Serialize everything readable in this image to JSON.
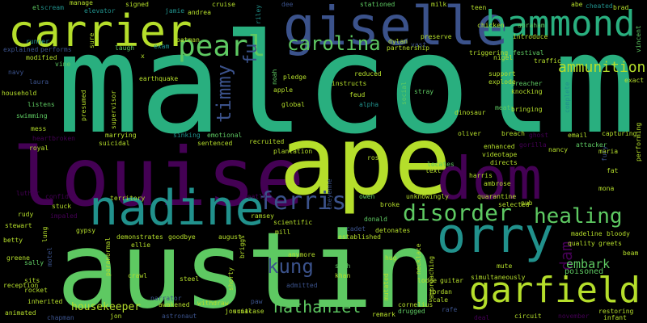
{
  "words": {
    "malcolm": "malcolm",
    "ape": "ape",
    "austin": "austin",
    "louise": "louise",
    "giselle": "giselle",
    "carrier": "carrier",
    "dom": "dom",
    "nadine": "nadine",
    "orry": "orry",
    "hammond": "hammond",
    "garfield": "garfield",
    "pearl": "pearl",
    "carolina": "carolina",
    "ferris": "ferris",
    "disorder": "disorder",
    "healing": "healing",
    "kung": "kung",
    "nathaniel": "nathaniel",
    "ammunition": "ammunition",
    "timmy": "timmy",
    "fu": "fu",
    "dam": "dam",
    "embark": "embark",
    "housekeeper": "housekeeper",
    "poisoned": "poisoned",
    "small": [
      "el",
      "scream",
      "manage",
      "elevator",
      "signed",
      "jamie",
      "andrea",
      "cruise",
      "riley",
      "stationed",
      "milk",
      "teen",
      "abe",
      "cheated",
      "brad",
      "vincent",
      "runner",
      "sure",
      "batman",
      "exam",
      "dylan",
      "vast",
      "chicken",
      "abraham",
      "explained",
      "performs",
      "laugh",
      "partnership",
      "preserve",
      "introduce",
      "modified",
      "vine",
      "x",
      "triggering",
      "festival",
      "nigel",
      "traffic",
      "navy",
      "earthquake",
      "noah",
      "pledge",
      "reduced",
      "support",
      "preacher",
      "laura",
      "instructs",
      "explode",
      "exact",
      "household",
      "apple",
      "feud",
      "social",
      "alpha",
      "stray",
      "knocking",
      "listens",
      "presumed",
      "global",
      "meat",
      "bringing",
      "swimming",
      "supervisor",
      "dinosaur",
      "complete",
      "mess",
      "marrying",
      "sinking",
      "emotional",
      "oliver",
      "breach",
      "ghost",
      "capturing",
      "heartbroken",
      "suicidal",
      "sentenced",
      "recruited",
      "email",
      "attacker",
      "royal",
      "plantation",
      "gorilla",
      "enhanced",
      "nancy",
      "maria",
      "rosa",
      "videotape",
      "directs",
      "fury",
      "locates",
      "text",
      "harris",
      "ambrose",
      "fat",
      "luther",
      "confides",
      "territory",
      "greatly",
      "owen",
      "unknowingly",
      "quarantine",
      "pub",
      "mona",
      "rudy",
      "stuck",
      "impaled",
      "ramsey",
      "broke",
      "selected",
      "scientific",
      "donald",
      "stewart",
      "gypsy",
      "demonstrates",
      "ellie",
      "goodbye",
      "august",
      "mill",
      "cadet",
      "detonates",
      "betty",
      "established",
      "madeline",
      "bloody",
      "greene",
      "sally",
      "motel",
      "paranormal",
      "briggs",
      "anymore",
      "seth",
      "hug",
      "quality",
      "greets",
      "sits",
      "crawl",
      "steel",
      "shorty",
      "khan",
      "admitted",
      "necklace",
      "approaching",
      "lodge",
      "guitar",
      "simultaneously",
      "mute",
      "reception",
      "rocket",
      "inherited",
      "narrator",
      "awakened",
      "withdraw",
      "journal",
      "suitcase",
      "paw",
      "remark",
      "drugged",
      "jordan",
      "cornelius",
      "scale",
      "rafe",
      "animated",
      "chapman",
      "jon",
      "astronaut",
      "circuit",
      "november",
      "restoring",
      "infant",
      "performing",
      "lung",
      "beam",
      "mutated",
      "deal",
      "dee",
      "cheyenne"
    ]
  },
  "colors": {
    "background": "#000000",
    "palette": [
      "#440154",
      "#3b528b",
      "#21918c",
      "#29af7f",
      "#5ec962",
      "#b5de2b",
      "#fde725"
    ]
  }
}
